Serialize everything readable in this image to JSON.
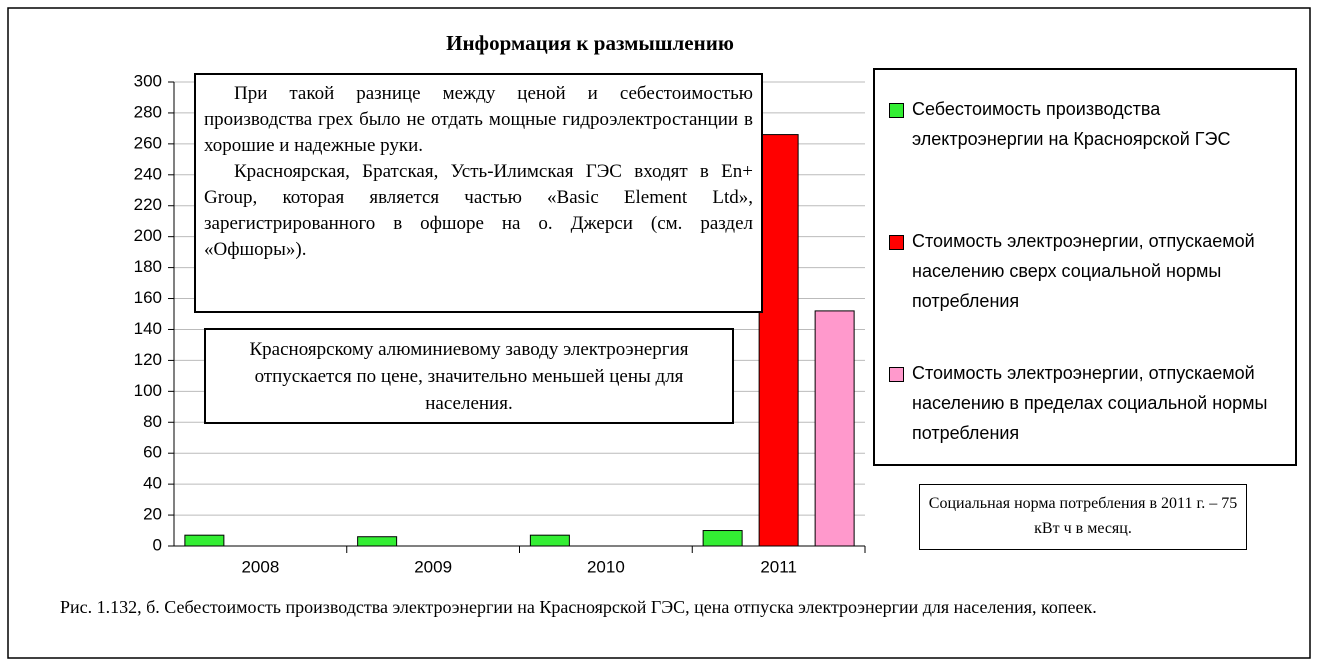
{
  "chart_data": {
    "type": "bar",
    "title": "Информация к размышлению",
    "categories": [
      "2008",
      "2009",
      "2010",
      "2011"
    ],
    "series": [
      {
        "name": "Себестоимость производства электроэнергии на Красноярской ГЭС",
        "color": "#33ee33",
        "values": [
          7,
          6,
          7,
          10
        ]
      },
      {
        "name": "Стоимость электроэнергии, отпускаемой населению сверх социальной нормы потребления",
        "color": "#ff0000",
        "values": [
          null,
          null,
          null,
          266
        ]
      },
      {
        "name": "Стоимость электроэнергии, отпускаемой населению в пределах социальной нормы потребления",
        "color": "#ff99cc",
        "values": [
          null,
          null,
          null,
          152
        ]
      }
    ],
    "ylim": [
      0,
      300
    ],
    "yticks": [
      0,
      20,
      40,
      60,
      80,
      100,
      120,
      140,
      160,
      180,
      200,
      220,
      240,
      260,
      280,
      300
    ],
    "grid": true,
    "legend": "right",
    "annotations": [
      {
        "paragraphs": [
          "При такой разнице между ценой и себестоимостью производства грех было не отдать мощные гидроэлектростанции в хорошие и надежные руки.",
          "Красноярская, Братская, Усть-Илимская ГЭС входят в En+ Group, которая является частью «Basic Element Ltd», зарегистрированного в офшоре на о. Джерси (см. раздел «Офшоры»)."
        ]
      },
      {
        "paragraphs": [
          "Красноярскому алюминиевому заводу электроэнергия отпускается по цене, значительно меньшей цены для населения."
        ]
      },
      {
        "paragraphs": [
          "Социальная норма потребления в 2011 г. – 75 кВт ч в месяц."
        ]
      }
    ],
    "caption": "Рис. 1.132, б. Себестоимость производства электроэнергии на Красноярской ГЭС, цена отпуска электроэнергии для населения, копеек."
  }
}
